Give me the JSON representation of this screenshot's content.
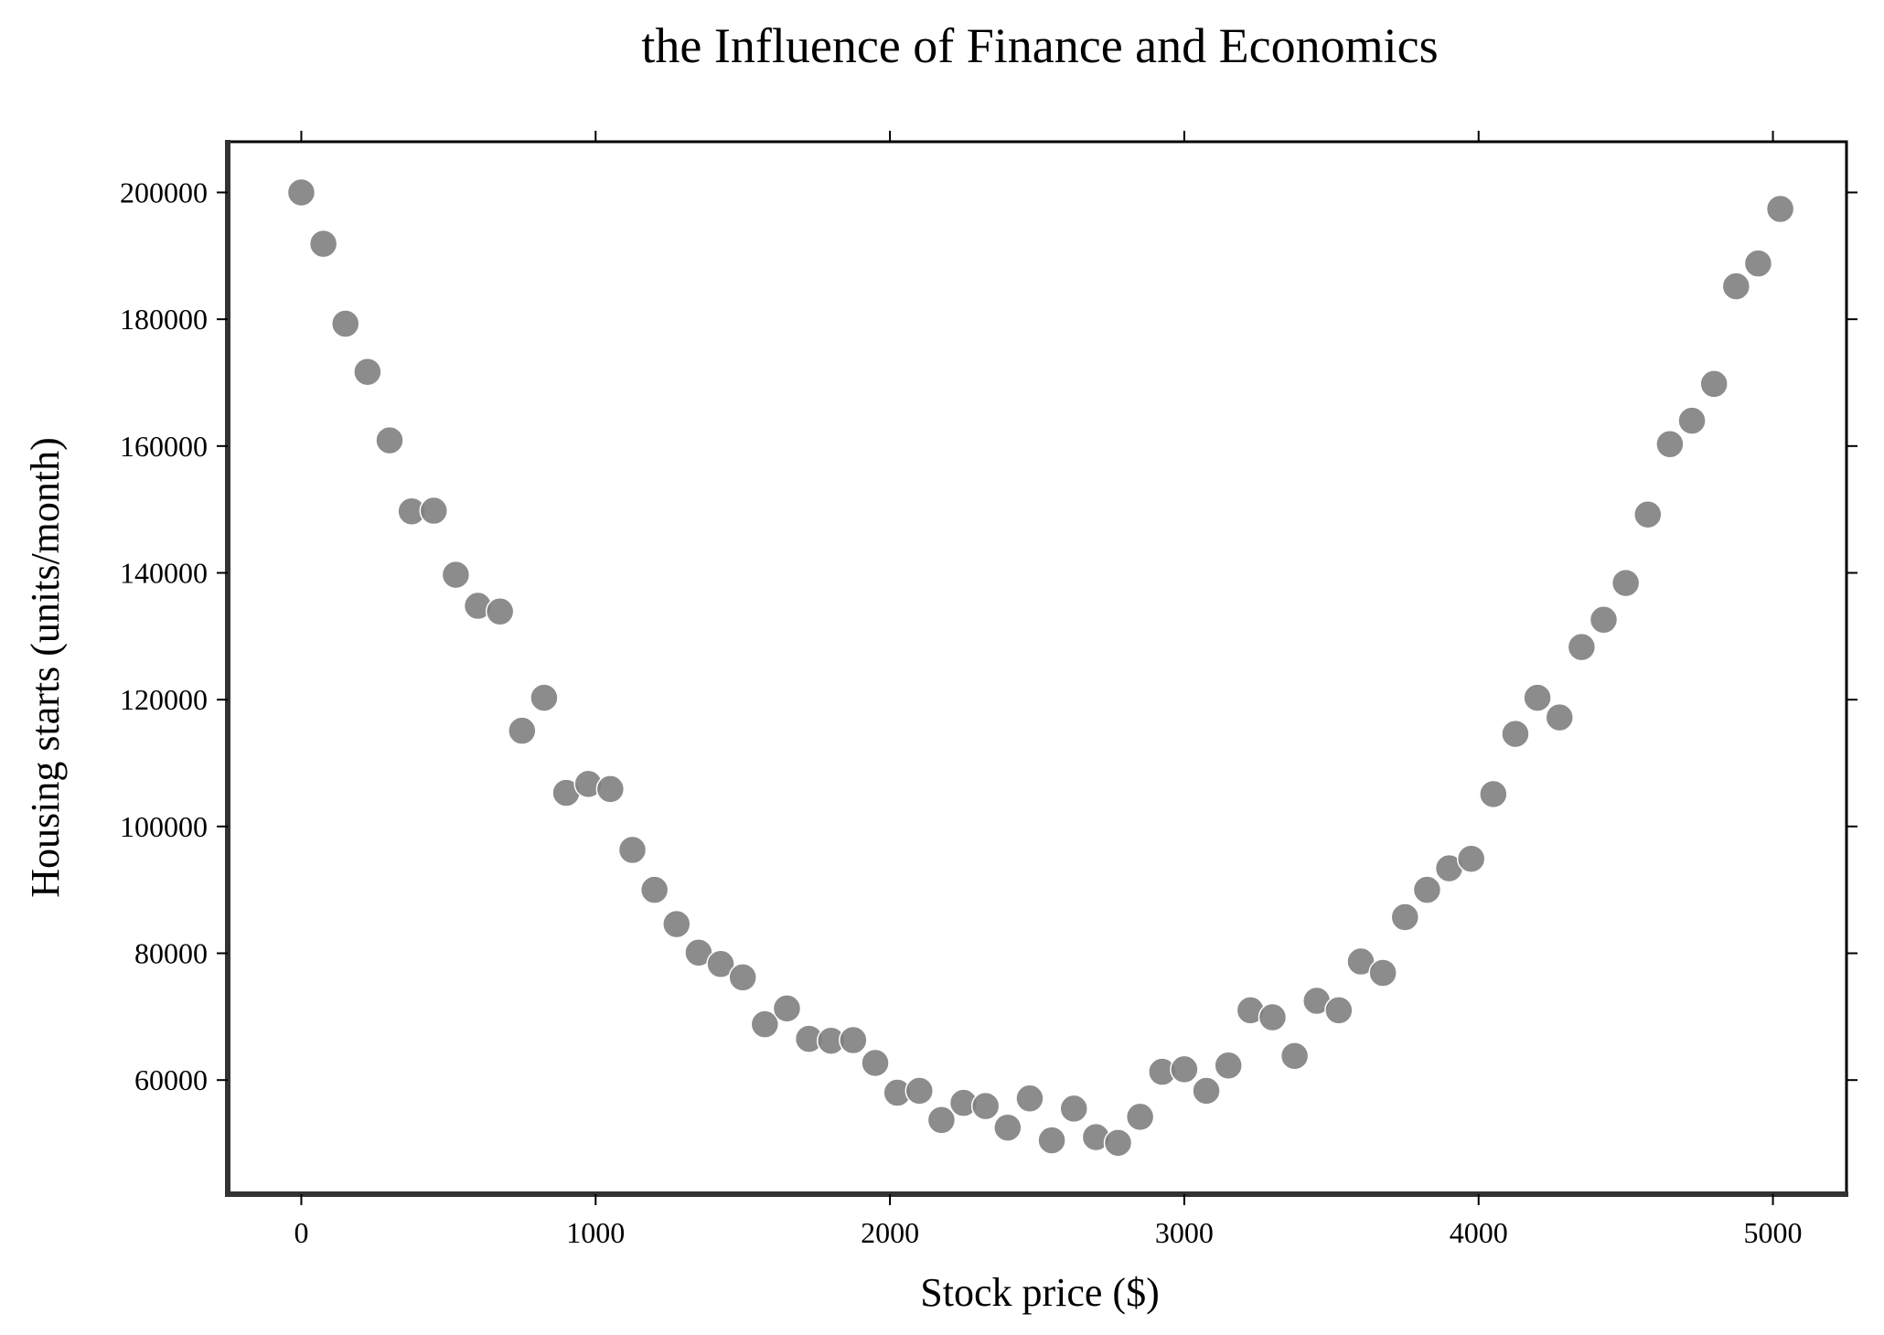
{
  "chart_data": {
    "type": "scatter",
    "title": "the Influence of Finance and Economics",
    "xlabel": "Stock price ($)",
    "ylabel": "Housing starts (units/month)",
    "xlim": [
      -250,
      5250
    ],
    "ylim": [
      42000,
      208000
    ],
    "xticks": [
      0,
      1000,
      2000,
      3000,
      4000,
      5000
    ],
    "yticks": [
      60000,
      80000,
      100000,
      120000,
      140000,
      160000,
      180000,
      200000
    ],
    "grid": false,
    "color": "#808080",
    "points": [
      {
        "x": 0,
        "y": 200000
      },
      {
        "x": 75,
        "y": 191900
      },
      {
        "x": 150,
        "y": 179300
      },
      {
        "x": 225,
        "y": 171700
      },
      {
        "x": 300,
        "y": 160900
      },
      {
        "x": 375,
        "y": 149700
      },
      {
        "x": 450,
        "y": 149800
      },
      {
        "x": 525,
        "y": 139700
      },
      {
        "x": 600,
        "y": 134800
      },
      {
        "x": 675,
        "y": 133900
      },
      {
        "x": 750,
        "y": 115100
      },
      {
        "x": 825,
        "y": 120300
      },
      {
        "x": 900,
        "y": 105300
      },
      {
        "x": 975,
        "y": 106700
      },
      {
        "x": 1050,
        "y": 105900
      },
      {
        "x": 1125,
        "y": 96300
      },
      {
        "x": 1200,
        "y": 90000
      },
      {
        "x": 1275,
        "y": 84600
      },
      {
        "x": 1350,
        "y": 80100
      },
      {
        "x": 1425,
        "y": 78300
      },
      {
        "x": 1500,
        "y": 76200
      },
      {
        "x": 1575,
        "y": 68800
      },
      {
        "x": 1650,
        "y": 71300
      },
      {
        "x": 1725,
        "y": 66500
      },
      {
        "x": 1800,
        "y": 66200
      },
      {
        "x": 1875,
        "y": 66300
      },
      {
        "x": 1950,
        "y": 62700
      },
      {
        "x": 2025,
        "y": 58000
      },
      {
        "x": 2100,
        "y": 58300
      },
      {
        "x": 2175,
        "y": 53700
      },
      {
        "x": 2250,
        "y": 56400
      },
      {
        "x": 2325,
        "y": 55900
      },
      {
        "x": 2400,
        "y": 52500
      },
      {
        "x": 2475,
        "y": 57100
      },
      {
        "x": 2550,
        "y": 50500
      },
      {
        "x": 2625,
        "y": 55500
      },
      {
        "x": 2700,
        "y": 51000
      },
      {
        "x": 2775,
        "y": 50100
      },
      {
        "x": 2850,
        "y": 54200
      },
      {
        "x": 2925,
        "y": 61300
      },
      {
        "x": 3000,
        "y": 61700
      },
      {
        "x": 3075,
        "y": 58300
      },
      {
        "x": 3150,
        "y": 62300
      },
      {
        "x": 3225,
        "y": 71000
      },
      {
        "x": 3300,
        "y": 69900
      },
      {
        "x": 3375,
        "y": 63800
      },
      {
        "x": 3450,
        "y": 72500
      },
      {
        "x": 3525,
        "y": 71000
      },
      {
        "x": 3600,
        "y": 78700
      },
      {
        "x": 3675,
        "y": 76900
      },
      {
        "x": 3750,
        "y": 85700
      },
      {
        "x": 3825,
        "y": 90000
      },
      {
        "x": 3900,
        "y": 93400
      },
      {
        "x": 3975,
        "y": 94900
      },
      {
        "x": 4050,
        "y": 105100
      },
      {
        "x": 4125,
        "y": 114600
      },
      {
        "x": 4200,
        "y": 120300
      },
      {
        "x": 4275,
        "y": 117200
      },
      {
        "x": 4350,
        "y": 128300
      },
      {
        "x": 4425,
        "y": 132600
      },
      {
        "x": 4500,
        "y": 138400
      },
      {
        "x": 4575,
        "y": 149200
      },
      {
        "x": 4650,
        "y": 160300
      },
      {
        "x": 4725,
        "y": 164000
      },
      {
        "x": 4800,
        "y": 169800
      },
      {
        "x": 4875,
        "y": 185200
      },
      {
        "x": 4950,
        "y": 188800
      },
      {
        "x": 5025,
        "y": 197400
      }
    ]
  }
}
